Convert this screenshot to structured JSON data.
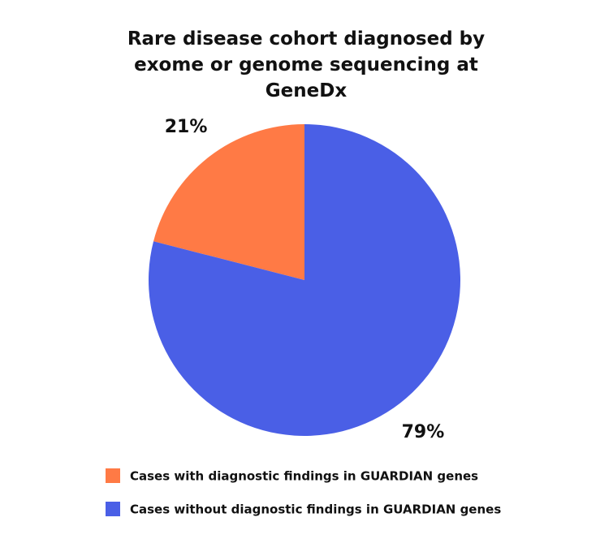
{
  "chart_data": {
    "type": "pie",
    "title": "Rare disease cohort diagnosed by exome or genome sequencing at GeneDx",
    "categories": [
      "Cases with diagnostic findings in GUARDIAN genes",
      "Cases without diagnostic findings in GUARDIAN genes"
    ],
    "values": [
      21,
      79
    ],
    "value_labels": [
      "21%",
      "79%"
    ],
    "colors": [
      "#ff7a45",
      "#4a5fe6"
    ]
  }
}
